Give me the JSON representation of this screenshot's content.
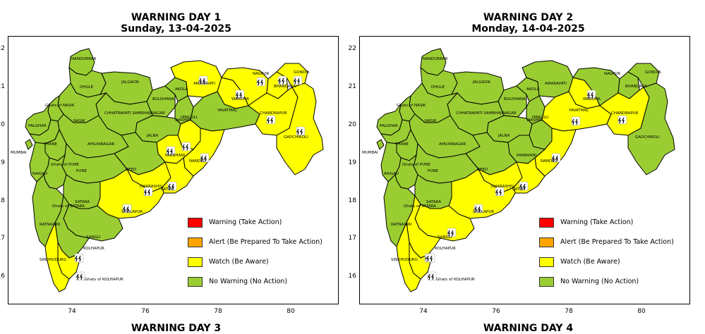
{
  "colors": {
    "warning": "#ff0000",
    "alert": "#ffa500",
    "watch": "#ffff00",
    "no_warning": "#9acd32",
    "border": "#000000"
  },
  "legend": [
    {
      "key": "warning",
      "label": "Warning (Take Action)"
    },
    {
      "key": "alert",
      "label": "Alert (Be Prepared To Take Action)"
    },
    {
      "key": "watch",
      "label": "Watch (Be Aware)"
    },
    {
      "key": "no_warning",
      "label": "No Warning (No Action)"
    }
  ],
  "panels": [
    {
      "title": "WARNING DAY 1",
      "subtitle": "Sunday, 13-04-2025",
      "yticks": [
        "22",
        "21",
        "20",
        "19",
        "18",
        "17",
        "16"
      ],
      "xticks": [
        "74",
        "76",
        "78",
        "80"
      ],
      "watch_districts": [
        "AMARAVATI",
        "NAGPUR",
        "BHANDARA",
        "GONDIA",
        "WARDHA",
        "CHANDRAPUR",
        "GADCHIROLI",
        "HINGOLI",
        "PARBHANI",
        "NANDED",
        "LATUR",
        "DHARASHIV",
        "SHOLAPUR",
        "Ghats of KOLHAPUR",
        "SINDHUDURG"
      ]
    },
    {
      "title": "WARNING DAY 2",
      "subtitle": "Monday, 14-04-2025",
      "yticks": [
        "22",
        "21",
        "20",
        "19",
        "18",
        "17",
        "16"
      ],
      "xticks": [
        "74",
        "76",
        "78",
        "80"
      ],
      "watch_districts": [
        "WARDHA",
        "YAVATMAL",
        "CHANDRAPUR",
        "NANDED",
        "LATUR",
        "DHARASHIV",
        "SHOLAPUR",
        "SANGLI",
        "KOLHAPUR",
        "SINDHUDURG",
        "Ghats of KOLHAPUR"
      ]
    }
  ],
  "bottom_titles": [
    "WARNING DAY 3",
    "WARNING DAY 4"
  ],
  "district_labels": [
    "NANDURBAR",
    "DHULE",
    "JALGAON",
    "AKOLA",
    "AMARAVATI",
    "NAGPUR",
    "BHANDARA",
    "GONDIA",
    "Ghats of NASIK",
    "NASIK",
    "BULDHANA",
    "WARDHA",
    "PALGHAR",
    "CHHATRAPATI SAMBHAJINAGAR",
    "WASHIM",
    "YAVATMAL",
    "CHANDRAPUR",
    "HINGOLI",
    "MUMBAI",
    "THANE",
    "AHILYANAGAR",
    "JALNA",
    "PARBHANI",
    "GADCHIROLI",
    "Ghats of PUNE",
    "NANDED",
    "RAIGAD",
    "PUNE",
    "BEED",
    "DHARASHIV",
    "LATUR",
    "Ghats of SATARA",
    "SATARA",
    "SHOLAPUR",
    "RATNAGIRI",
    "SANGLI",
    "KOLHAPUR",
    "SINDHUDURG",
    "Ghats of KOLHAPUR"
  ]
}
